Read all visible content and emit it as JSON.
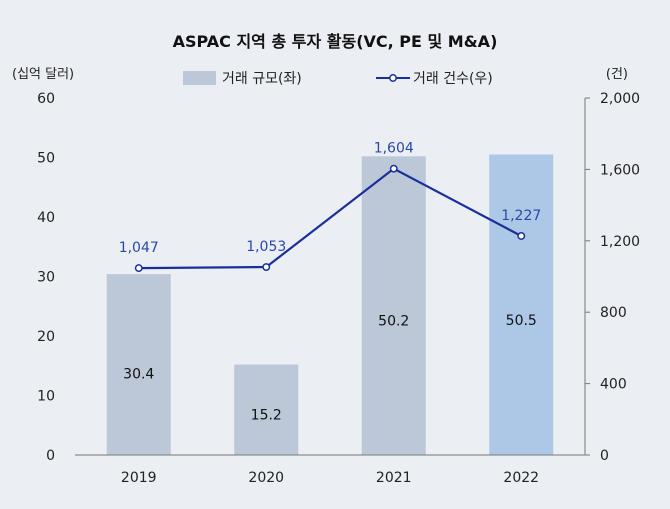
{
  "chart_data": {
    "type": "bar",
    "title": "ASPAC 지역 총 투자 활동(VC, PE 및 M&A)",
    "ylabel_left": "(십억 달러)",
    "ylabel_right": "(건)",
    "categories": [
      "2019",
      "2020",
      "2021",
      "2022"
    ],
    "y_left_ticks": [
      "0",
      "10",
      "20",
      "30",
      "40",
      "50",
      "60"
    ],
    "y_right_ticks": [
      "0",
      "400",
      "800",
      "1,200",
      "1,600",
      "2,000"
    ],
    "ylim_left": [
      0,
      60
    ],
    "ylim_right": [
      0,
      2000
    ],
    "series": [
      {
        "name": "거래 규모(좌)",
        "type": "bar",
        "axis": "left",
        "values": [
          30.4,
          15.2,
          50.2,
          50.5
        ],
        "labels": [
          "30.4",
          "15.2",
          "50.2",
          "50.5"
        ],
        "color": "#bcc8d8",
        "highlight_color": "#adc7e6"
      },
      {
        "name": "거래 건수(우)",
        "type": "line",
        "axis": "right",
        "values": [
          1047,
          1053,
          1604,
          1227
        ],
        "labels": [
          "1,047",
          "1,053",
          "1,604",
          "1,227"
        ],
        "color": "#1a2f9e"
      }
    ],
    "legend_position": "top"
  }
}
